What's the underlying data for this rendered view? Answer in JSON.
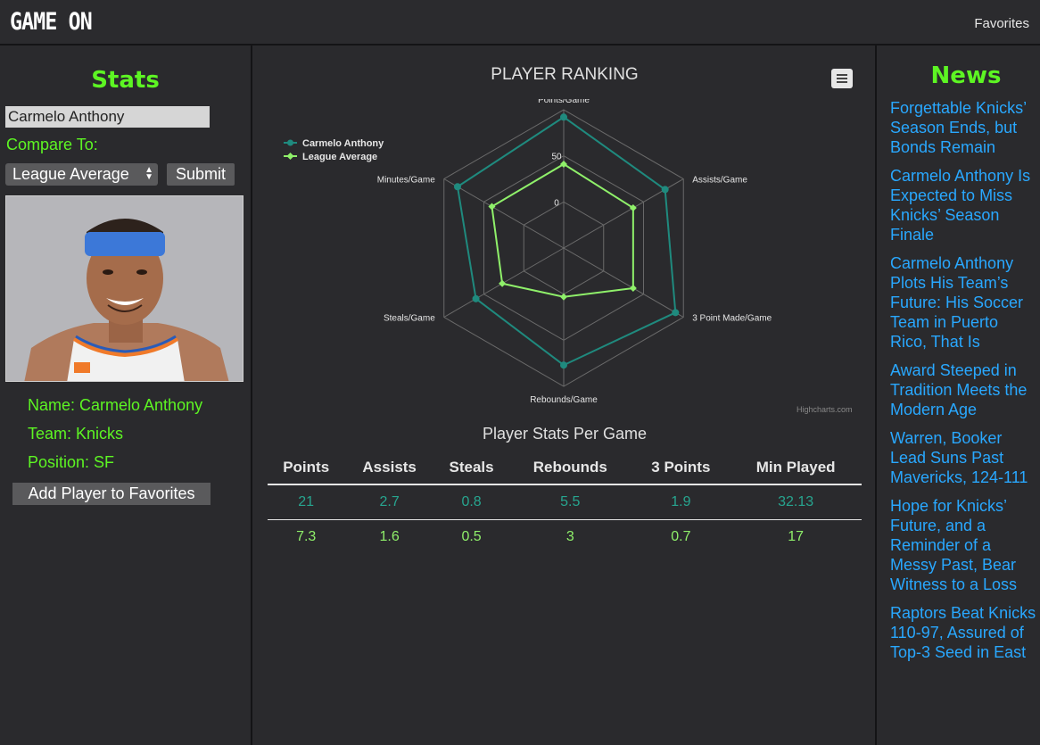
{
  "header": {
    "brand": "GAME ON",
    "favorites_link": "Favorites"
  },
  "sidebar": {
    "title": "Stats",
    "player_input_value": "Carmelo Anthony",
    "compare_label": "Compare To:",
    "compare_select_value": "League Average",
    "submit_label": "Submit",
    "info": {
      "name": "Name: Carmelo Anthony",
      "team": "Team: Knicks",
      "position": "Position: SF"
    },
    "add_favorite_label": "Add Player to Favorites"
  },
  "chart": {
    "title": "PLAYER RANKING",
    "credits": "Highcharts.com",
    "legend_position": "top-left",
    "colors": {
      "player": "#1f8a7e",
      "league": "#8ff06a",
      "grid": "#6a6a6a"
    },
    "menu_icon": "hamburger-menu-icon"
  },
  "chart_data": {
    "type": "radar",
    "title": "PLAYER RANKING",
    "categories": [
      "Points/Game",
      "Assists/Game",
      "3 Point Made/Game",
      "Rebounds/Game",
      "Steals/Game",
      "Minutes/Game"
    ],
    "y_tick_labels": [
      "0",
      "50"
    ],
    "ylim": [
      -50,
      100
    ],
    "grid": true,
    "legend": "top-left",
    "series": [
      {
        "name": "Carmelo Anthony",
        "values": [
          92,
          77,
          90,
          77,
          60,
          83
        ]
      },
      {
        "name": "League Average",
        "values": [
          41,
          37,
          37,
          3,
          27,
          40
        ]
      }
    ]
  },
  "table": {
    "title": "Player Stats Per Game",
    "headers": [
      "Points",
      "Assists",
      "Steals",
      "Rebounds",
      "3 Points",
      "Min Played"
    ],
    "rows": [
      [
        "21",
        "2.7",
        "0.8",
        "5.5",
        "1.9",
        "32.13"
      ],
      [
        "7.3",
        "1.6",
        "0.5",
        "3",
        "0.7",
        "17"
      ]
    ]
  },
  "news": {
    "title": "News",
    "items": [
      "Forgettable Knicks’ Season Ends, but Bonds Remain",
      "Carmelo Anthony Is Expected to Miss Knicks’ Season Finale",
      "Carmelo Anthony Plots His Team’s Future: His Soccer Team in Puerto Rico, That Is",
      "Award Steeped in Tradition Meets the Modern Age",
      "Warren, Booker Lead Suns Past Mavericks, 124-111",
      "Hope for Knicks’ Future, and a Reminder of a Messy Past, Bear Witness to a Loss",
      "Raptors Beat Knicks 110-97, Assured of Top-3 Seed in East"
    ]
  }
}
